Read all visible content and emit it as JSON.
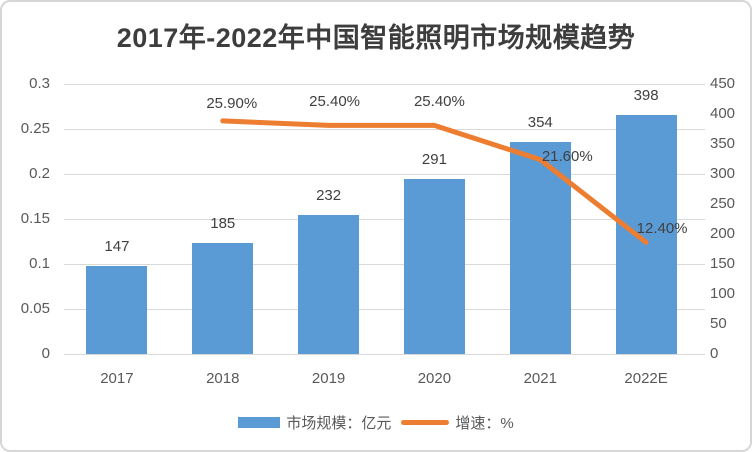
{
  "title": "2017年-2022年中国智能照明市场规模趋势",
  "colors": {
    "bar": "#5b9bd5",
    "line": "#ed7d31",
    "grid": "#d9d9d9",
    "axis_text": "#595959",
    "label_text": "#404040",
    "title_text": "#3d3d3d"
  },
  "chart_data": {
    "type": "bar",
    "subtype": "combo-bar-line",
    "title": "2017年-2022年中国智能照明市场规模趋势",
    "categories": [
      "2017",
      "2018",
      "2019",
      "2020",
      "2021",
      "2022E"
    ],
    "series": [
      {
        "name": "市场规模：亿元",
        "type": "bar",
        "axis": "right",
        "values": [
          147,
          185,
          232,
          291,
          354,
          398
        ],
        "labels": [
          "147",
          "185",
          "232",
          "291",
          "354",
          "398"
        ]
      },
      {
        "name": "增速：%",
        "type": "line",
        "axis": "left",
        "values": [
          null,
          0.259,
          0.254,
          0.254,
          0.216,
          0.124
        ],
        "labels": [
          null,
          "25.90%",
          "25.40%",
          "25.40%",
          "21.60%",
          "12.40%"
        ]
      }
    ],
    "left_axis": {
      "min": 0,
      "max": 0.3,
      "ticks": [
        0.3,
        0.25,
        0.2,
        0.15,
        0.1,
        0.05,
        0
      ],
      "tick_labels": [
        "0.3",
        "0.25",
        "0.2",
        "0.15",
        "0.1",
        "0.05",
        "0"
      ]
    },
    "right_axis": {
      "min": 0,
      "max": 450,
      "ticks": [
        450,
        400,
        350,
        300,
        250,
        200,
        150,
        100,
        50,
        0
      ],
      "tick_labels": [
        "450",
        "400",
        "350",
        "300",
        "250",
        "200",
        "150",
        "100",
        "50",
        "0"
      ]
    },
    "grid": "horizontal",
    "legend_position": "bottom",
    "legend": [
      {
        "label": "市场规模：亿元",
        "swatch": "bar"
      },
      {
        "label": "增速：%",
        "swatch": "line"
      }
    ]
  }
}
